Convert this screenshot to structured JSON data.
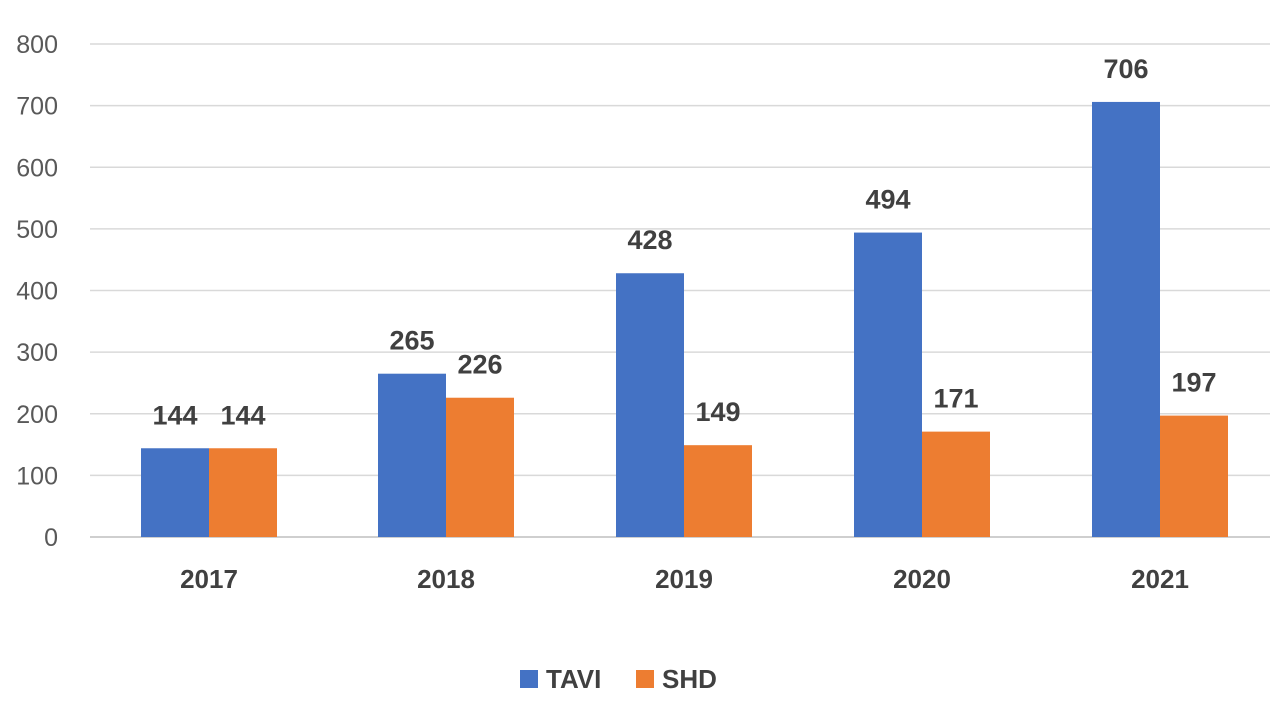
{
  "chart_data": {
    "type": "bar",
    "title": "",
    "xlabel": "",
    "ylabel": "",
    "categories": [
      "2017",
      "2018",
      "2019",
      "2020",
      "2021"
    ],
    "series": [
      {
        "name": "TAVI",
        "color": "#4472C4",
        "values": [
          144,
          265,
          428,
          494,
          706
        ]
      },
      {
        "name": "SHD",
        "color": "#ED7D31",
        "values": [
          144,
          226,
          149,
          171,
          197
        ]
      }
    ],
    "ylim": [
      0,
      800
    ],
    "yticks": [
      0,
      100,
      200,
      300,
      400,
      500,
      600,
      700,
      800
    ],
    "grid": true,
    "legend": "bottom-center",
    "data_labels": true
  }
}
